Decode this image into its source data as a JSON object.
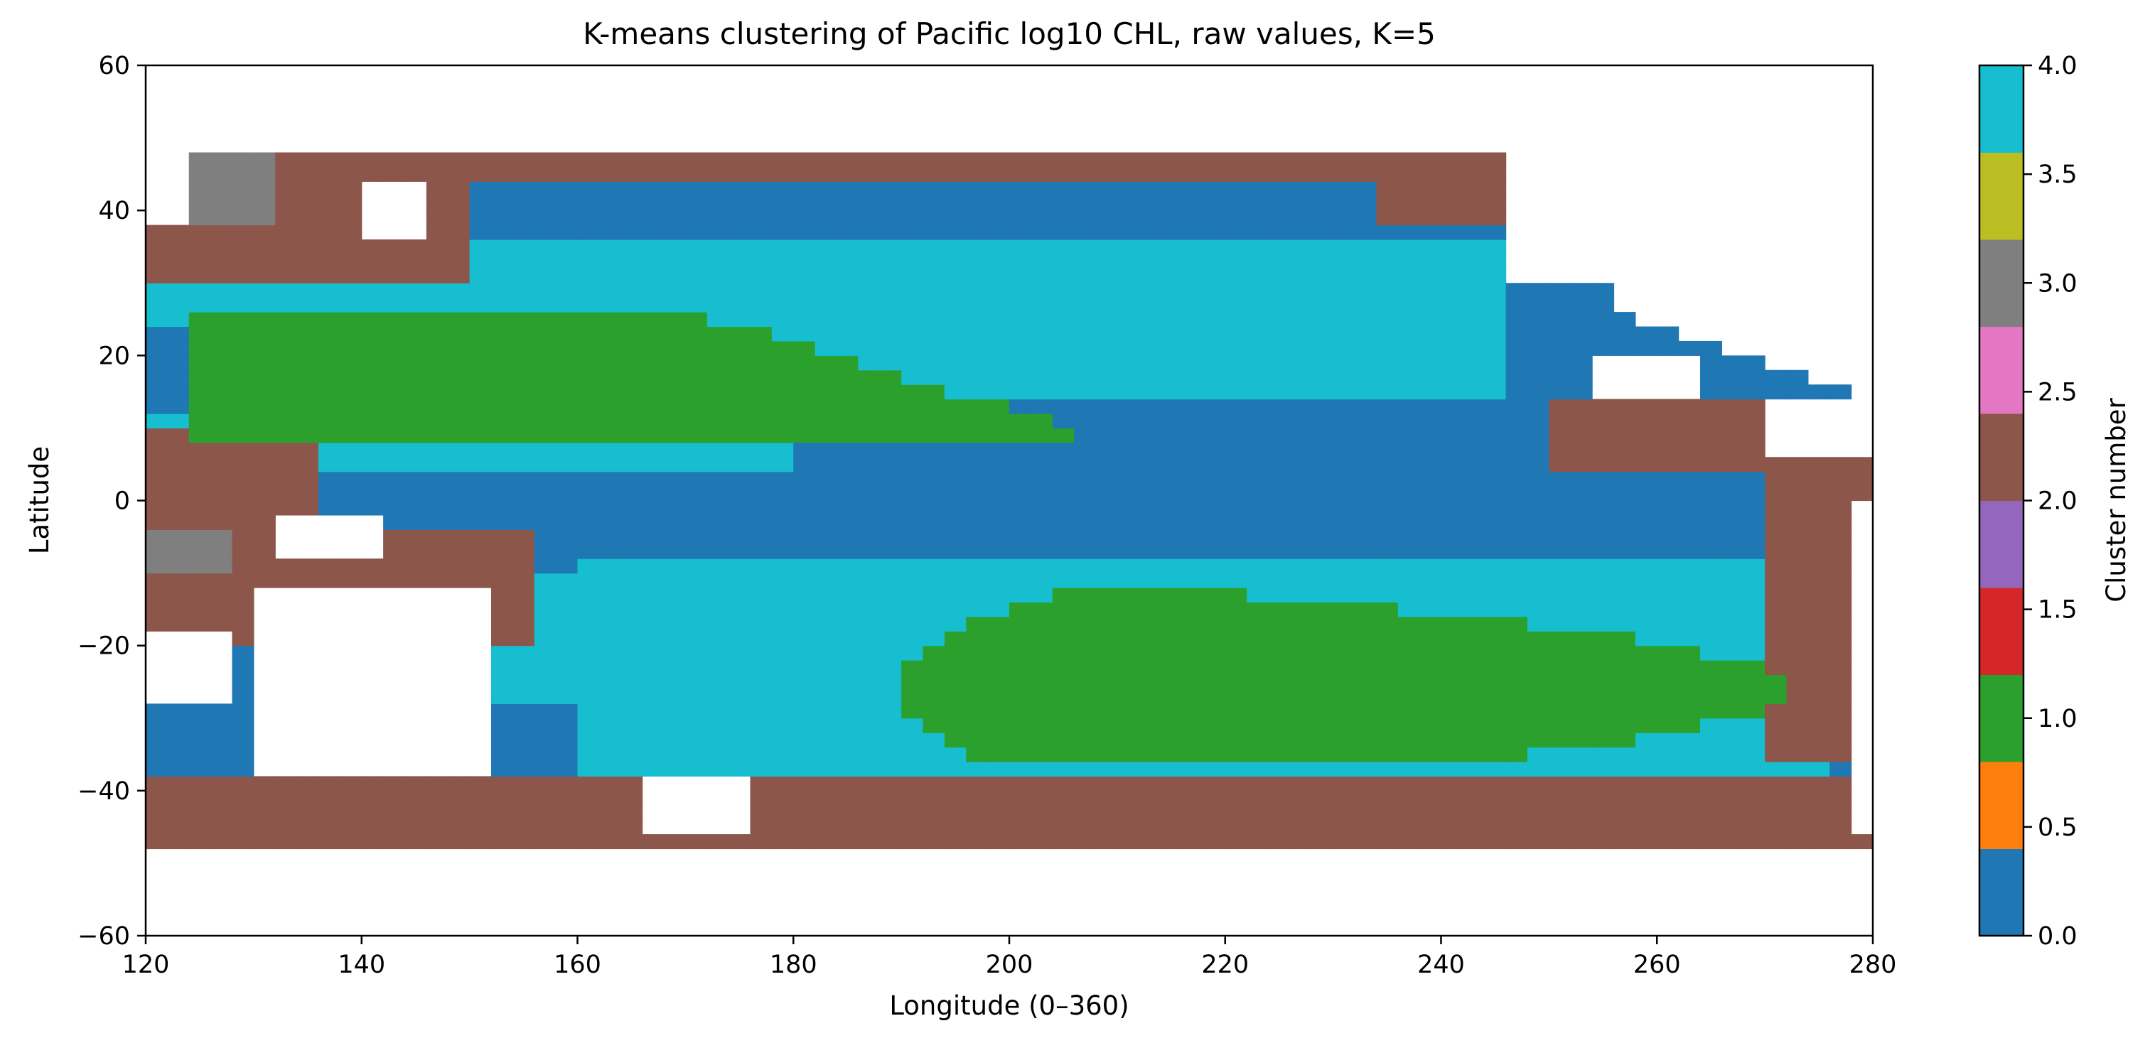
{
  "chart_data": {
    "type": "heatmap",
    "title": "K-means clustering of Pacific log10 CHL, raw values, K=5",
    "xlabel": "Longitude (0–360)",
    "ylabel": "Latitude",
    "xlim": [
      120,
      280
    ],
    "ylim": [
      -60,
      60
    ],
    "x_ticks": [
      120,
      140,
      160,
      180,
      200,
      220,
      240,
      260,
      280
    ],
    "x_tick_labels": [
      "120",
      "140",
      "160",
      "180",
      "200",
      "220",
      "240",
      "260",
      "280"
    ],
    "y_ticks": [
      60,
      40,
      20,
      0,
      -20,
      -40,
      -60
    ],
    "y_tick_labels": [
      "60",
      "40",
      "20",
      "0",
      "−20",
      "−40",
      "−60"
    ],
    "data_extent": {
      "lon": [
        120,
        280
      ],
      "lat": [
        -48,
        48
      ]
    },
    "grid": false,
    "colormap": "tab10",
    "colorbar": {
      "label": "Cluster number",
      "range": [
        0,
        4
      ],
      "ticks": [
        0,
        0.5,
        1,
        1.5,
        2,
        2.5,
        3,
        3.5,
        4
      ],
      "tick_labels": [
        "0.0",
        "0.5",
        "1.0",
        "1.5",
        "2.0",
        "2.5",
        "3.0",
        "3.5",
        "4.0"
      ],
      "colors": [
        "#1f77b4",
        "#ff7f0e",
        "#2ca02c",
        "#d62728",
        "#9467bd",
        "#8c564b",
        "#e377c2",
        "#7f7f7f",
        "#bcbd22",
        "#17becf"
      ],
      "position": "right"
    },
    "clusters": [
      {
        "value": 0,
        "color": "#1f77b4"
      },
      {
        "value": 1,
        "color": "#2ca02c"
      },
      {
        "value": 2,
        "color": "#8c564b"
      },
      {
        "value": 3,
        "color": "#7f7f7f"
      },
      {
        "value": 4,
        "color": "#17becf"
      }
    ]
  }
}
